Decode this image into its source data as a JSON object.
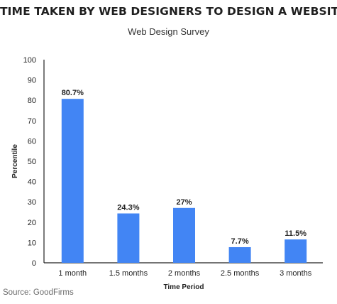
{
  "chart_data": {
    "type": "bar",
    "title": "TIME TAKEN BY WEB DESIGNERS TO DESIGN A WEBSITE",
    "subtitle": "Web Design Survey",
    "xlabel": "Time Period",
    "ylabel": "Percentile",
    "categories": [
      "1 month",
      "1.5 months",
      "2 months",
      "2.5 months",
      "3 months"
    ],
    "values": [
      80.7,
      24.3,
      27,
      7.7,
      11.5
    ],
    "data_labels": [
      "80.7%",
      "24.3%",
      "27%",
      "7.7%",
      "11.5%"
    ],
    "ylim": [
      0,
      100
    ],
    "yticks": [
      0,
      10,
      20,
      30,
      40,
      50,
      60,
      70,
      80,
      90,
      100
    ],
    "bar_color": "#4285f4",
    "grid": false,
    "legend": "none"
  },
  "source": "Source: GoodFirms"
}
